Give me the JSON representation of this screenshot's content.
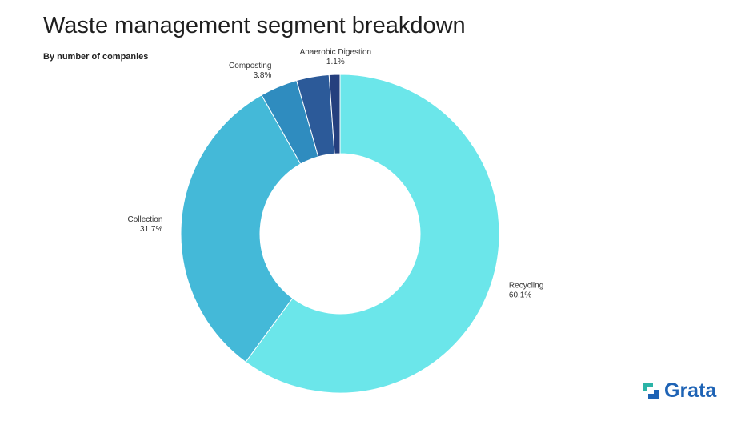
{
  "header": {
    "title": "Waste management segment breakdown",
    "subtitle": "By number of companies"
  },
  "chart_data": {
    "type": "pie",
    "donut": true,
    "categories": [
      "Recycling",
      "Collection",
      "Composting",
      "Anaerobic Digestion"
    ],
    "values": [
      60.1,
      31.7,
      3.8,
      1.1
    ],
    "labels": [
      "60.1%",
      "31.7%",
      "3.8%",
      "1.1%"
    ],
    "colors": [
      "#6be6ea",
      "#44b9d8",
      "#2f8cbf",
      "#2c5a99",
      "#253f7e"
    ],
    "extra_slice_value": 3.3,
    "start_angle_deg": 0,
    "direction": "clockwise"
  },
  "logo": {
    "text": "Grata",
    "text_color": "#1e63b5",
    "mark_colors": [
      "#2bb4a7",
      "#1e63b5"
    ]
  }
}
